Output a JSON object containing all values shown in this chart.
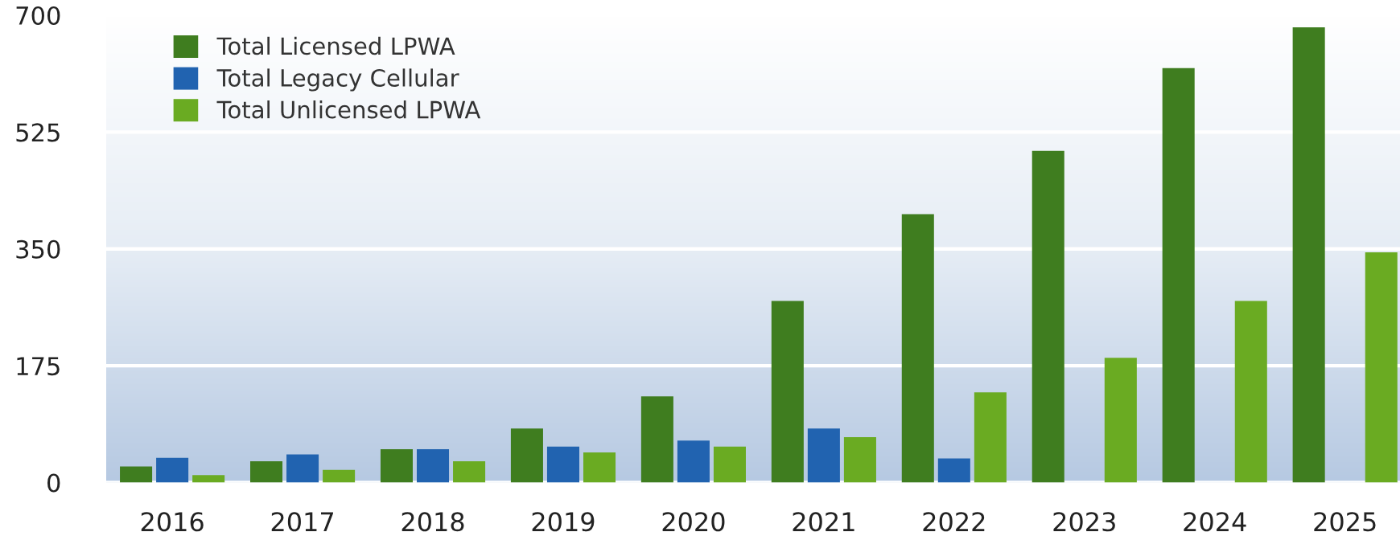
{
  "chart_data": {
    "type": "bar",
    "categories": [
      "2016",
      "2017",
      "2018",
      "2019",
      "2020",
      "2021",
      "2022",
      "2023",
      "2024",
      "2025"
    ],
    "series": [
      {
        "name": "Total Licensed LPWA",
        "color": "#3f7d1f",
        "values": [
          24,
          32,
          50,
          81,
          129,
          272,
          402,
          497,
          621,
          682
        ]
      },
      {
        "name": "Total Legacy Cellular",
        "color": "#2163b0",
        "values": [
          37,
          42,
          50,
          54,
          63,
          81,
          36,
          null,
          null,
          null
        ]
      },
      {
        "name": "Total Unlicensed LPWA",
        "color": "#6aab22",
        "values": [
          11,
          19,
          32,
          45,
          54,
          68,
          135,
          187,
          272,
          345
        ]
      }
    ],
    "ylim": [
      0,
      700
    ],
    "yticks": [
      0,
      175,
      350,
      525,
      700
    ],
    "grid": "y",
    "legend": "top left"
  }
}
